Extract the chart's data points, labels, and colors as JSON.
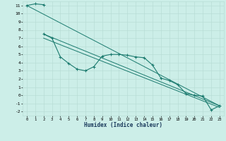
{
  "xlabel": "Humidex (Indice chaleur)",
  "background_color": "#cceee8",
  "grid_color": "#b8ddd6",
  "line_color": "#1a7a6e",
  "xlim": [
    -0.5,
    23.5
  ],
  "ylim": [
    -2.5,
    11.5
  ],
  "xticks": [
    0,
    1,
    2,
    3,
    4,
    5,
    6,
    7,
    8,
    9,
    10,
    11,
    12,
    13,
    14,
    15,
    16,
    17,
    18,
    19,
    20,
    21,
    22,
    23
  ],
  "yticks": [
    -2,
    -1,
    0,
    1,
    2,
    3,
    4,
    5,
    6,
    7,
    8,
    9,
    10,
    11
  ],
  "series1_x": [
    0,
    1,
    2
  ],
  "series1_y": [
    11.0,
    11.2,
    11.1
  ],
  "series2_x": [
    2,
    3,
    4,
    5,
    6,
    7,
    8,
    9,
    10,
    11,
    12,
    13,
    14,
    15,
    16,
    17,
    18,
    19,
    20,
    21,
    22,
    23
  ],
  "series2_y": [
    7.5,
    7.0,
    4.7,
    3.9,
    3.2,
    3.0,
    3.5,
    4.8,
    5.0,
    5.0,
    4.9,
    4.7,
    4.6,
    3.7,
    2.1,
    1.8,
    1.3,
    0.2,
    0.0,
    -0.1,
    -1.8,
    -1.3
  ],
  "line1_x": [
    0,
    23
  ],
  "line1_y": [
    11.0,
    -1.3
  ],
  "line2_x": [
    2,
    23
  ],
  "line2_y": [
    7.5,
    -1.3
  ],
  "line3_x": [
    2,
    23
  ],
  "line3_y": [
    7.0,
    -1.5
  ]
}
